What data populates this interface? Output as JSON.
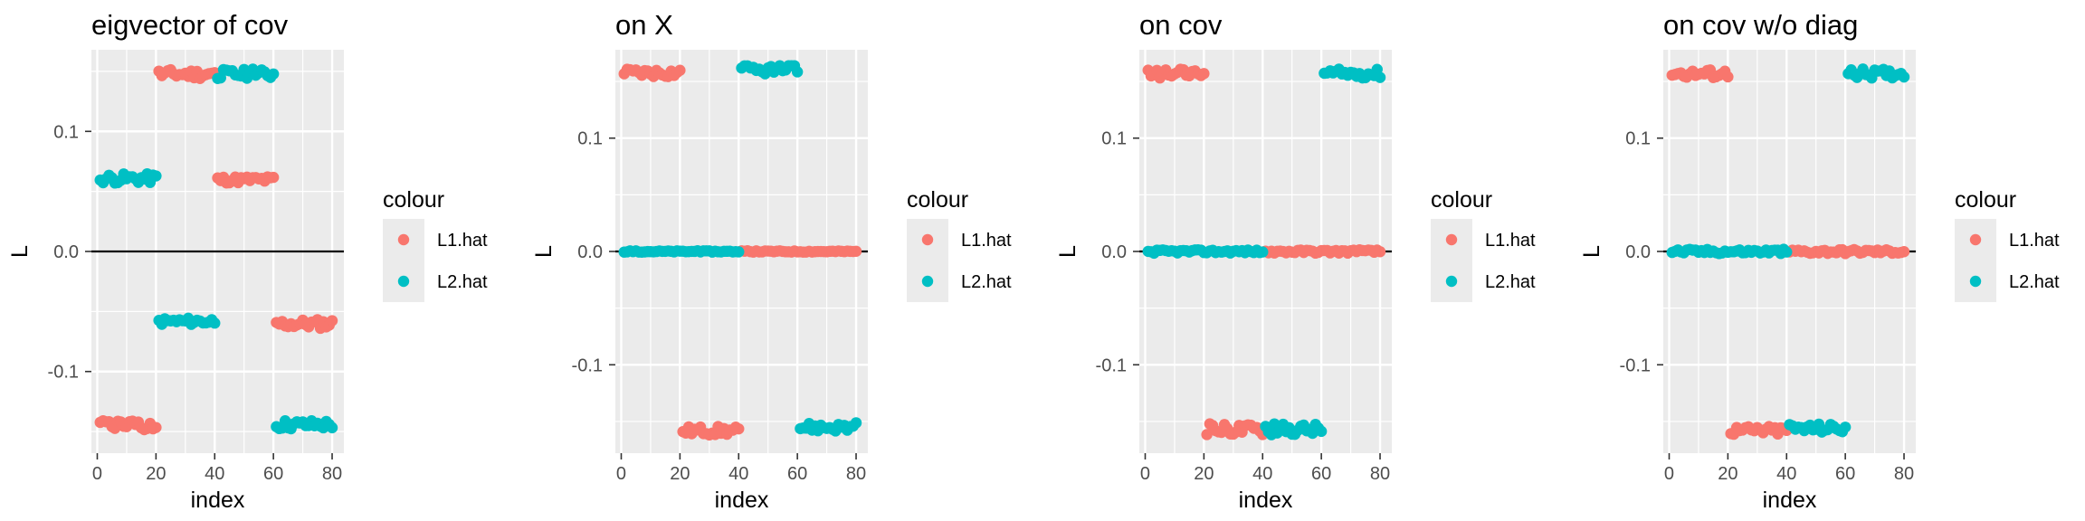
{
  "colors": {
    "L1.hat": "#f8766d",
    "L2.hat": "#00bfc4",
    "panel": "#ebebeb",
    "grid": "#ffffff",
    "hline": "#000000"
  },
  "chart_data": [
    {
      "type": "scatter",
      "title": "eigvector of cov",
      "xlabel": "index",
      "ylabel": "L",
      "xlim": [
        -2,
        84
      ],
      "ylim": [
        -0.168,
        0.168
      ],
      "xticks": [
        0,
        20,
        40,
        60,
        80
      ],
      "xtick_labels": [
        "0",
        "20",
        "40",
        "60",
        "80"
      ],
      "yticks": [
        -0.1,
        0.0,
        0.1
      ],
      "ytick_labels": [
        "-0.1",
        "0.0",
        "0.1"
      ],
      "hline": 0,
      "grid": true,
      "legend": {
        "title": "colour",
        "entries": [
          "L1.hat",
          "L2.hat"
        ],
        "placement": "right"
      },
      "series": [
        {
          "name": "L1.hat",
          "segments": [
            {
              "x_start": 1,
              "x_end": 20,
              "center": -0.145,
              "jitter": 0.004
            },
            {
              "x_start": 21,
              "x_end": 40,
              "center": 0.148,
              "jitter": 0.004
            },
            {
              "x_start": 41,
              "x_end": 60,
              "center": 0.06,
              "jitter": 0.003
            },
            {
              "x_start": 61,
              "x_end": 80,
              "center": -0.06,
              "jitter": 0.004
            }
          ]
        },
        {
          "name": "L2.hat",
          "segments": [
            {
              "x_start": 1,
              "x_end": 20,
              "center": 0.061,
              "jitter": 0.004
            },
            {
              "x_start": 21,
              "x_end": 40,
              "center": -0.058,
              "jitter": 0.003
            },
            {
              "x_start": 41,
              "x_end": 60,
              "center": 0.148,
              "jitter": 0.004
            },
            {
              "x_start": 61,
              "x_end": 80,
              "center": -0.144,
              "jitter": 0.004
            }
          ]
        }
      ]
    },
    {
      "type": "scatter",
      "title": "on X",
      "xlabel": "index",
      "ylabel": "L",
      "xlim": [
        -2,
        84
      ],
      "ylim": [
        -0.178,
        0.178
      ],
      "xticks": [
        0,
        20,
        40,
        60,
        80
      ],
      "xtick_labels": [
        "0",
        "20",
        "40",
        "60",
        "80"
      ],
      "yticks": [
        -0.1,
        0.0,
        0.1
      ],
      "ytick_labels": [
        "-0.1",
        "0.0",
        "0.1"
      ],
      "hline": 0,
      "grid": true,
      "legend": {
        "title": "colour",
        "entries": [
          "L1.hat",
          "L2.hat"
        ],
        "placement": "right"
      },
      "series": [
        {
          "name": "L1.hat",
          "segments": [
            {
              "x_start": 1,
              "x_end": 20,
              "center": 0.158,
              "jitter": 0.004
            },
            {
              "x_start": 21,
              "x_end": 40,
              "center": -0.158,
              "jitter": 0.004
            },
            {
              "x_start": 41,
              "x_end": 80,
              "center": 0.0,
              "jitter": 0.0006
            }
          ]
        },
        {
          "name": "L2.hat",
          "segments": [
            {
              "x_start": 1,
              "x_end": 40,
              "center": 0.0,
              "jitter": 0.0006
            },
            {
              "x_start": 41,
              "x_end": 60,
              "center": 0.16,
              "jitter": 0.004
            },
            {
              "x_start": 61,
              "x_end": 80,
              "center": -0.155,
              "jitter": 0.004
            }
          ]
        }
      ]
    },
    {
      "type": "scatter",
      "title": "on cov",
      "xlabel": "index",
      "ylabel": "L",
      "xlim": [
        -2,
        84
      ],
      "ylim": [
        -0.178,
        0.178
      ],
      "xticks": [
        0,
        20,
        40,
        60,
        80
      ],
      "xtick_labels": [
        "0",
        "20",
        "40",
        "60",
        "80"
      ],
      "yticks": [
        -0.1,
        0.0,
        0.1
      ],
      "ytick_labels": [
        "-0.1",
        "0.0",
        "0.1"
      ],
      "hline": 0,
      "grid": true,
      "legend": {
        "title": "colour",
        "entries": [
          "L1.hat",
          "L2.hat"
        ],
        "placement": "right"
      },
      "series": [
        {
          "name": "L1.hat",
          "segments": [
            {
              "x_start": 1,
              "x_end": 20,
              "center": 0.157,
              "jitter": 0.004
            },
            {
              "x_start": 21,
              "x_end": 40,
              "center": -0.157,
              "jitter": 0.005
            },
            {
              "x_start": 41,
              "x_end": 80,
              "center": 0.0,
              "jitter": 0.0015
            }
          ]
        },
        {
          "name": "L2.hat",
          "segments": [
            {
              "x_start": 1,
              "x_end": 40,
              "center": 0.0,
              "jitter": 0.0015
            },
            {
              "x_start": 41,
              "x_end": 60,
              "center": -0.157,
              "jitter": 0.005
            },
            {
              "x_start": 61,
              "x_end": 80,
              "center": 0.157,
              "jitter": 0.004
            }
          ]
        }
      ]
    },
    {
      "type": "scatter",
      "title": "on cov w/o diag",
      "xlabel": "index",
      "ylabel": "L",
      "xlim": [
        -2,
        84
      ],
      "ylim": [
        -0.178,
        0.178
      ],
      "xticks": [
        0,
        20,
        40,
        60,
        80
      ],
      "xtick_labels": [
        "0",
        "20",
        "40",
        "60",
        "80"
      ],
      "yticks": [
        -0.1,
        0.0,
        0.1
      ],
      "ytick_labels": [
        "-0.1",
        "0.0",
        "0.1"
      ],
      "hline": 0,
      "grid": true,
      "legend": {
        "title": "colour",
        "entries": [
          "L1.hat",
          "L2.hat"
        ],
        "placement": "right"
      },
      "series": [
        {
          "name": "L1.hat",
          "segments": [
            {
              "x_start": 1,
              "x_end": 20,
              "center": 0.157,
              "jitter": 0.004
            },
            {
              "x_start": 21,
              "x_end": 40,
              "center": -0.158,
              "jitter": 0.004
            },
            {
              "x_start": 41,
              "x_end": 80,
              "center": 0.0,
              "jitter": 0.002
            }
          ]
        },
        {
          "name": "L2.hat",
          "segments": [
            {
              "x_start": 1,
              "x_end": 40,
              "center": 0.0,
              "jitter": 0.002
            },
            {
              "x_start": 41,
              "x_end": 60,
              "center": -0.156,
              "jitter": 0.004
            },
            {
              "x_start": 61,
              "x_end": 80,
              "center": 0.157,
              "jitter": 0.004
            }
          ]
        }
      ]
    }
  ]
}
